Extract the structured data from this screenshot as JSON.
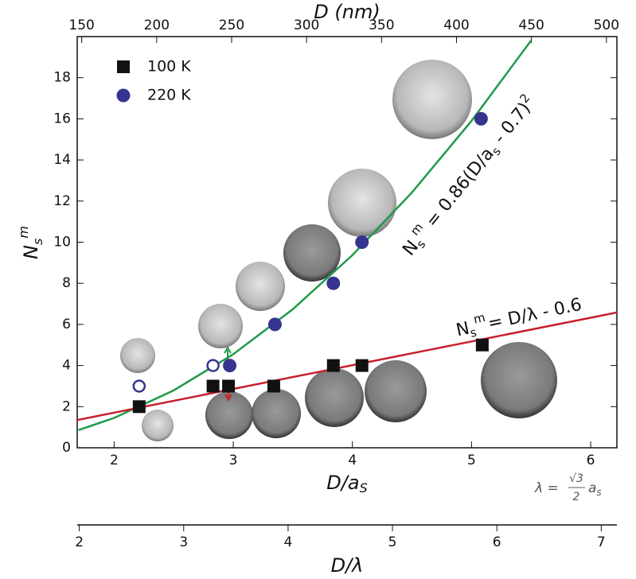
{
  "chart_data": {
    "type": "scatter",
    "x_label": {
      "main": "D/a",
      "sub": "S"
    },
    "top_x_label": "D (nm)",
    "y_label": {
      "main": "N",
      "sub": "s",
      "sup": "m"
    },
    "third_x_label": "D/λ",
    "xlim": [
      1.69,
      6.22
    ],
    "xticks": [
      2,
      3,
      4,
      5,
      6
    ],
    "top_xlim": [
      147,
      507
    ],
    "top_xticks": [
      150,
      200,
      250,
      300,
      350,
      400,
      450,
      500
    ],
    "third_xlim": [
      1.98,
      7.15
    ],
    "third_xticks": [
      2,
      3,
      4,
      5,
      6,
      7
    ],
    "ylim": [
      0,
      20
    ],
    "yticks": [
      0,
      2,
      4,
      6,
      8,
      10,
      12,
      14,
      16,
      18
    ],
    "legend": "upper left",
    "series": [
      {
        "name": "100 K",
        "marker": "square",
        "color": "#111111",
        "x": [
          2.21,
          2.83,
          2.96,
          3.34,
          3.84,
          4.08,
          5.09
        ],
        "values": [
          2,
          3,
          3,
          3,
          4,
          4,
          5
        ]
      },
      {
        "name": "220 K",
        "marker": "circle",
        "color": "#35358f",
        "x": [
          2.97,
          3.35,
          3.84,
          4.08,
          5.08
        ],
        "values": [
          4,
          6,
          8,
          10,
          16
        ]
      },
      {
        "marker": "open-circle",
        "color": "#35358f",
        "x": [
          2.21,
          2.83
        ],
        "values": [
          3,
          4
        ]
      }
    ],
    "fits": [
      {
        "color": "#1f9a4a",
        "x": [
          1.7,
          2,
          2.5,
          3,
          3.5,
          4,
          4.5,
          5,
          5.5
        ],
        "values": [
          0.86,
          1.45,
          2.79,
          4.55,
          6.74,
          9.37,
          12.42,
          15.9,
          19.81
        ],
        "label": {
          "main": "N",
          "sub": "s",
          "sup": "m",
          "rest": " = 0.86(D/a",
          "sub2": "s",
          "rest2": " - 0.7)",
          "sup2": "2"
        }
      },
      {
        "color": "#c8202e",
        "x": [
          1.69,
          6.22
        ],
        "values": [
          1.35,
          6.58
        ],
        "label": {
          "main": "N",
          "sub": "s",
          "sup": "m",
          "rest": "= D/λ - 0.6"
        }
      }
    ],
    "lambda_note": {
      "lhs": "λ =",
      "numerator": "√3",
      "denominator": "2",
      "a": "a",
      "sub": "s"
    }
  }
}
